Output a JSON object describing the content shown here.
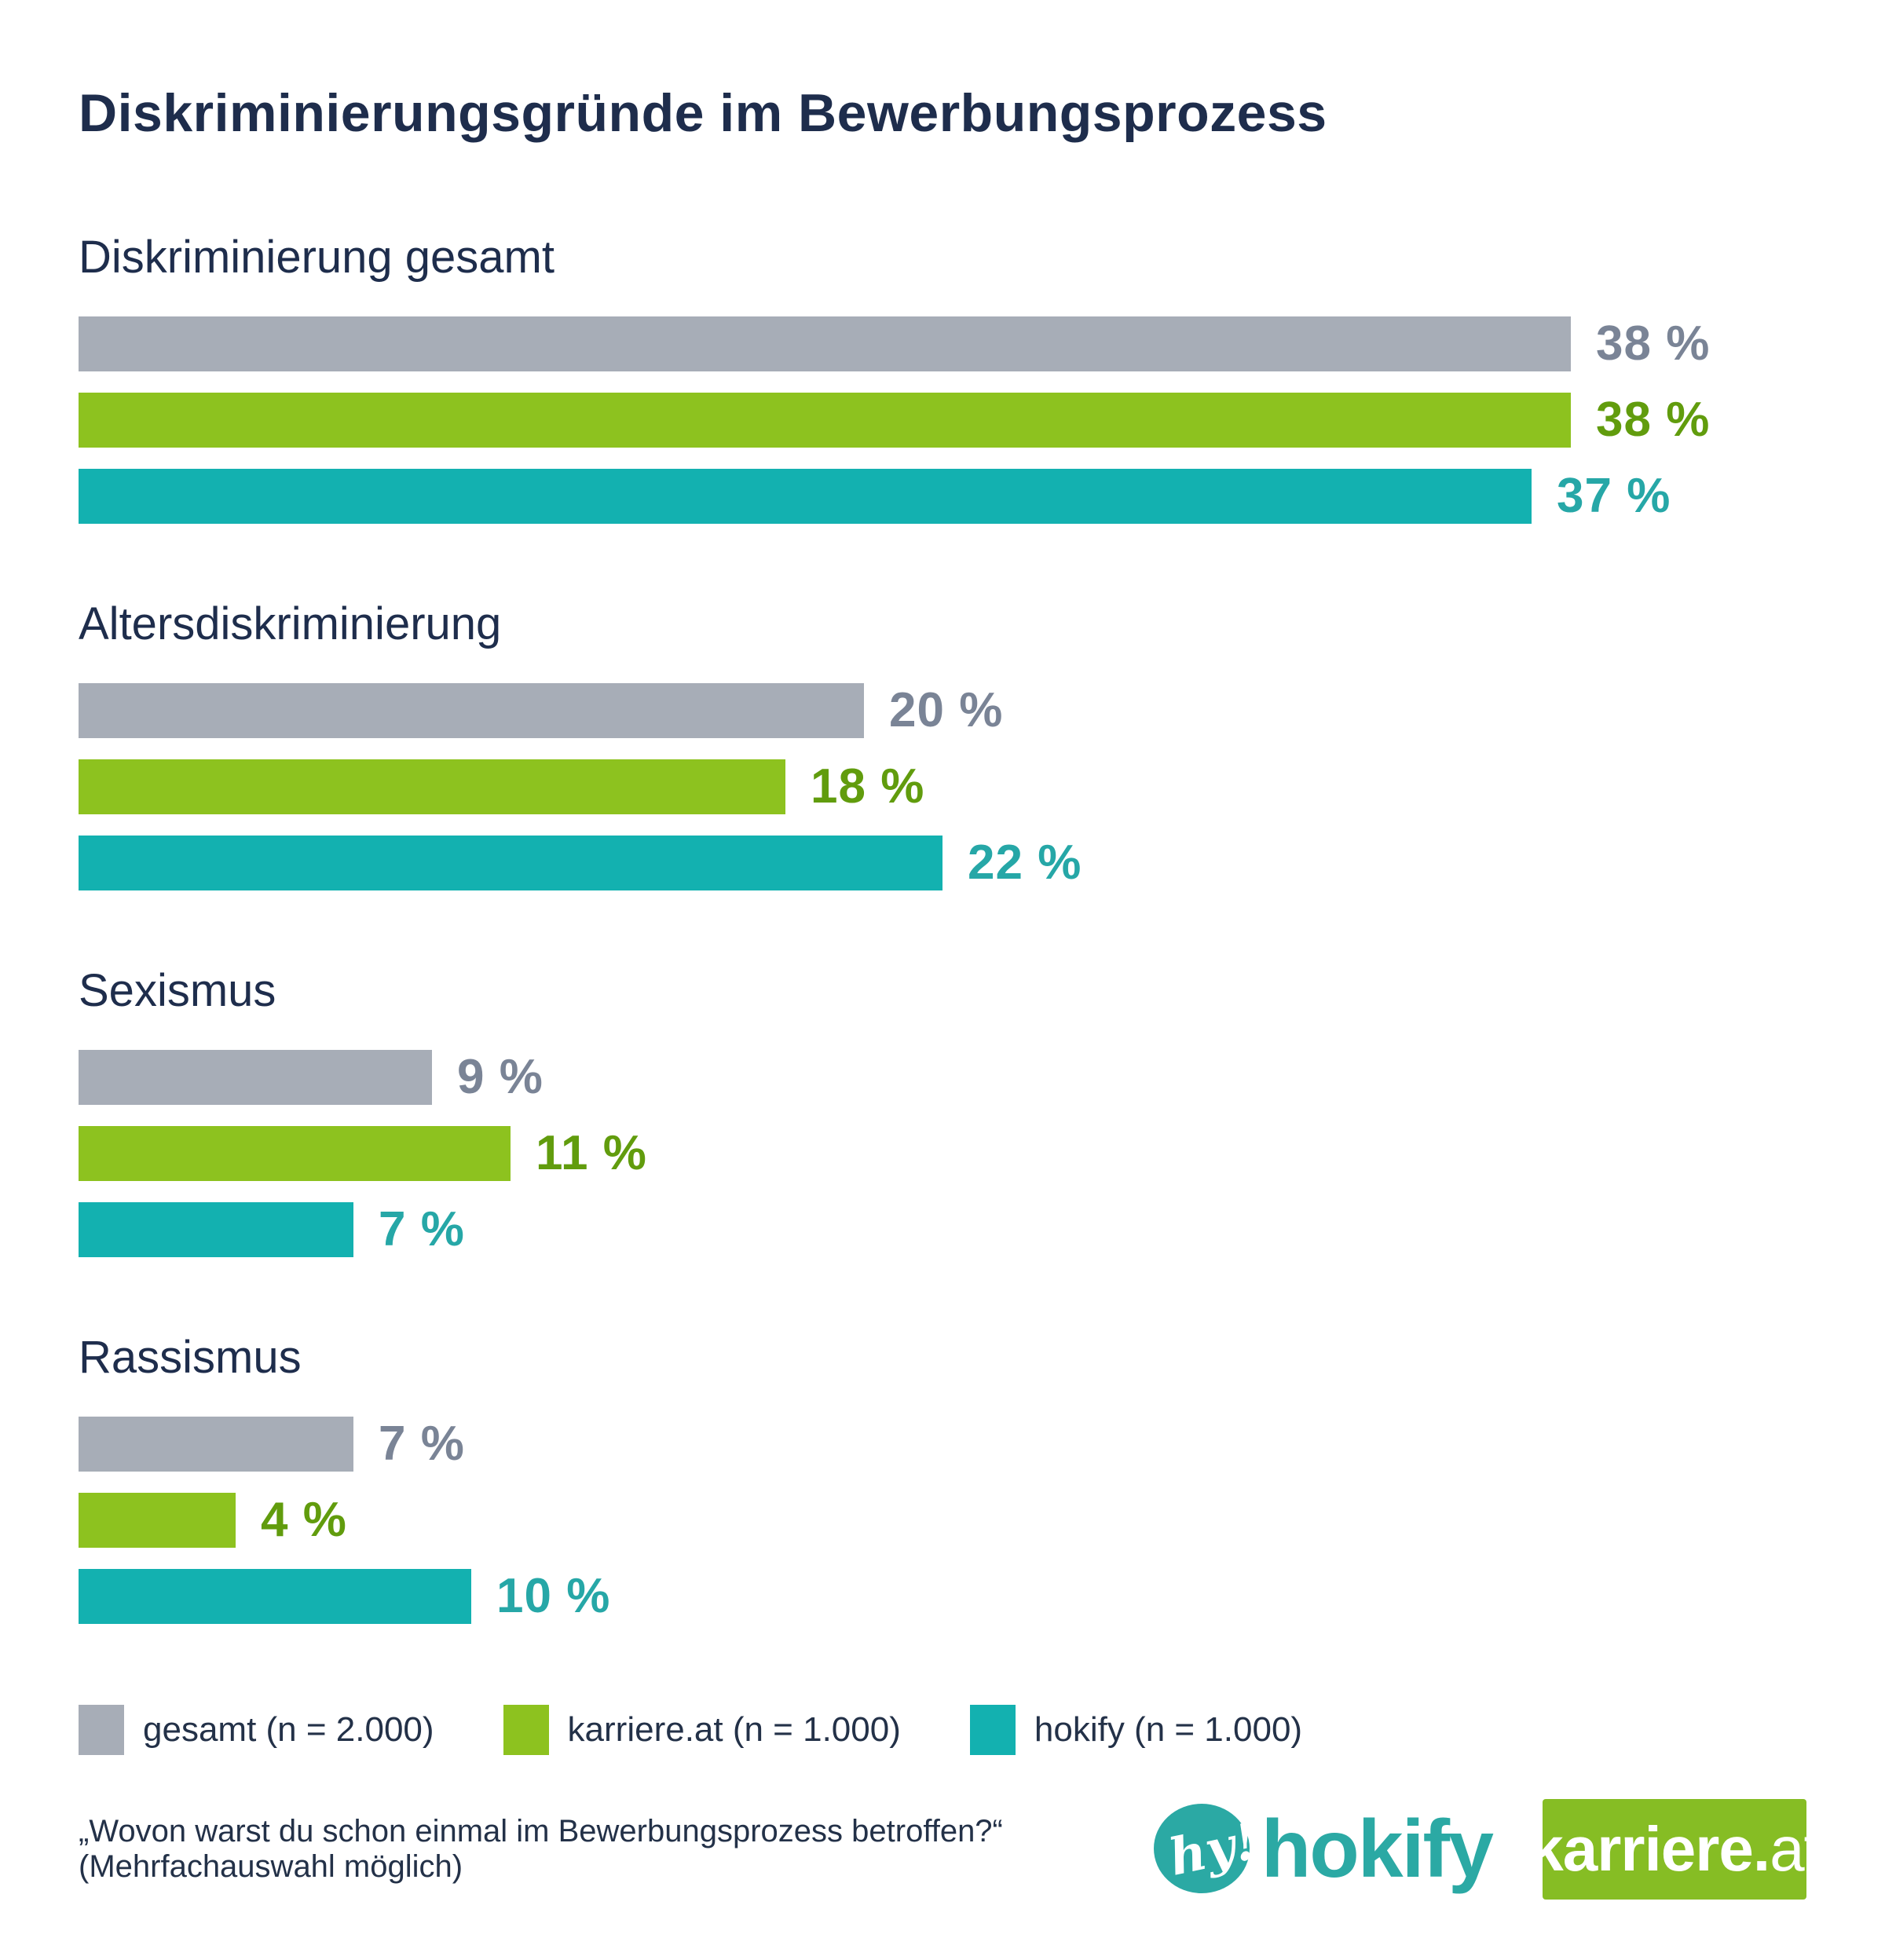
{
  "title": "Diskriminierungsgründe im Bewerbungsprozess",
  "chart_data": {
    "type": "bar",
    "orientation": "horizontal",
    "title": "Diskriminierungsgründe im Bewerbungsprozess",
    "unit": "%",
    "label_suffix": " %",
    "categories": [
      "Diskriminierung gesamt",
      "Altersdiskriminierung",
      "Sexismus",
      "Rassismus"
    ],
    "series": [
      {
        "name": "gesamt (n = 2.000)",
        "color": "#a7adb7",
        "label_color": "#7a8496",
        "values": [
          38,
          20,
          9,
          7
        ]
      },
      {
        "name": "karriere.at (n = 1.000)",
        "color": "#8dc21f",
        "label_color": "#619c0d",
        "values": [
          38,
          18,
          11,
          4
        ]
      },
      {
        "name": "hokify (n = 1.000)",
        "color": "#13b1b0",
        "label_color": "#26a7a7",
        "values": [
          37,
          22,
          7,
          10
        ]
      }
    ],
    "xlim": [
      0,
      44
    ],
    "grid": false,
    "legend_position": "bottom",
    "value_labels": "end-of-bar"
  },
  "footer": {
    "note": "„Wovon warst du schon einmal im Bewerbungsprozess betroffen?“ (Mehrfachauswahl möglich)",
    "logos": {
      "hokify_mark": "hy!",
      "hokify_word": "hokify",
      "karriere_bold": "karriere.",
      "karriere_light": "at"
    }
  },
  "brand_colors": {
    "hokify_teal": "#2ba9a4",
    "karriere_green": "#86bd24",
    "navy": "#1e2d4c"
  }
}
